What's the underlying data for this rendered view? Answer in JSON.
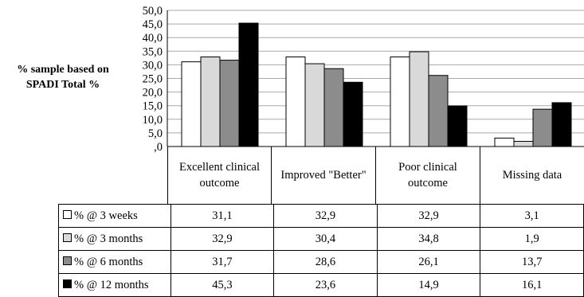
{
  "chart_data": {
    "type": "bar",
    "ylabel": "% sample based on\nSPADI Total %",
    "ylim": [
      0,
      50
    ],
    "yticks": [
      ",0",
      "5,0",
      "10,0",
      "15,0",
      "20,0",
      "25,0",
      "30,0",
      "35,0",
      "40,0",
      "45,0",
      "50,0"
    ],
    "categories": [
      "Excellent clinical outcome",
      "Improved \"Better\"",
      "Poor clinical outcome",
      "Missing data"
    ],
    "series": [
      {
        "name": "% @ 3 weeks",
        "color": "#ffffff",
        "values": [
          31.1,
          32.9,
          32.9,
          3.1
        ],
        "labels": [
          "31,1",
          "32,9",
          "32,9",
          "3,1"
        ]
      },
      {
        "name": "% @ 3 months",
        "color": "#d9d9d9",
        "values": [
          32.9,
          30.4,
          34.8,
          1.9
        ],
        "labels": [
          "32,9",
          "30,4",
          "34,8",
          "1,9"
        ]
      },
      {
        "name": "% @ 6 months",
        "color": "#8c8c8c",
        "values": [
          31.7,
          28.6,
          26.1,
          13.7
        ],
        "labels": [
          "31,7",
          "28,6",
          "26,1",
          "13,7"
        ]
      },
      {
        "name": "% @ 12 months",
        "color": "#000000",
        "values": [
          45.3,
          23.6,
          14.9,
          16.1
        ],
        "labels": [
          "45,3",
          "23,6",
          "14,9",
          "16,1"
        ]
      }
    ],
    "grid": true,
    "legend": "data table below chart"
  }
}
